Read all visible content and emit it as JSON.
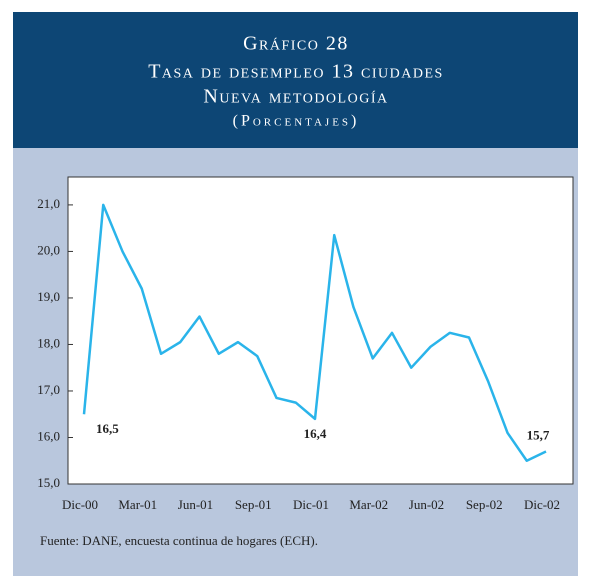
{
  "chart_data": {
    "type": "line",
    "title": "Gráfico 28",
    "subtitle": [
      "Tasa de desempleo 13 ciudades",
      "Nueva metodología",
      "(Porcentajes)"
    ],
    "source": "Fuente: DANE, encuesta continua de hogares (ECH).",
    "categories": [
      "Dic-00",
      null,
      null,
      "Mar-01",
      null,
      null,
      "Jun-01",
      null,
      null,
      "Sep-01",
      null,
      null,
      "Dic-01",
      null,
      null,
      "Mar-02",
      null,
      null,
      "Jun-02",
      null,
      null,
      "Sep-02",
      null,
      null,
      "Dic-02"
    ],
    "series": [
      {
        "color": "#2ab4ea",
        "values": [
          16.5,
          21.0,
          20.0,
          19.2,
          17.8,
          18.05,
          18.6,
          17.8,
          18.05,
          17.75,
          16.85,
          16.75,
          16.4,
          20.35,
          18.8,
          17.7,
          18.25,
          17.5,
          17.95,
          18.25,
          18.15,
          17.2,
          16.1,
          15.5,
          15.7
        ],
        "value_labels": [
          "16,5",
          null,
          null,
          null,
          null,
          null,
          null,
          null,
          null,
          null,
          null,
          null,
          "16,4",
          null,
          null,
          null,
          null,
          null,
          null,
          null,
          null,
          null,
          null,
          null,
          "15,7"
        ]
      }
    ],
    "ylim": [
      15,
      21.6
    ],
    "yticks": [
      {
        "value": 15,
        "label": "15,0"
      },
      {
        "value": 16,
        "label": "16,0"
      },
      {
        "value": 17,
        "label": "17,0"
      },
      {
        "value": 18,
        "label": "18,0"
      },
      {
        "value": 19,
        "label": "19,0"
      },
      {
        "value": 20,
        "label": "20,0"
      },
      {
        "value": 21,
        "label": "21,0"
      }
    ],
    "grid": false
  }
}
